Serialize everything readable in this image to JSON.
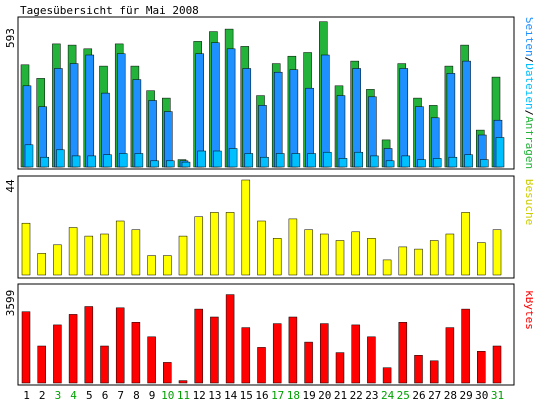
{
  "title": "Tagesübersicht für Mai 2008",
  "colors": {
    "background": "#ffffff",
    "panel_border": "#000000",
    "pages": "#1e90ff",
    "files": "#00bfff",
    "requests": "#23b33a",
    "visits": "#ffff00",
    "kbytes": "#ff0000",
    "weekend_label": "#00a000",
    "weekday_label": "#000000",
    "axis_legend_1_pages": "#1e90ff",
    "axis_legend_1_files": "#00bfff",
    "axis_legend_1_requests": "#23b33a",
    "axis_legend_2": "#cccc00",
    "axis_legend_3": "#ff0000"
  },
  "chart_data": [
    {
      "type": "bar",
      "panel": "top",
      "title": "Tagesübersicht für Mai 2008",
      "ymax_label": "593",
      "ylim": [
        0,
        593
      ],
      "legend_text": [
        "Seiten",
        "Dateien",
        "Anfragen"
      ],
      "categories": [
        "1",
        "2",
        "3",
        "4",
        "5",
        "6",
        "7",
        "8",
        "9",
        "10",
        "11",
        "12",
        "13",
        "14",
        "15",
        "16",
        "17",
        "18",
        "19",
        "20",
        "21",
        "22",
        "23",
        "24",
        "25",
        "26",
        "27",
        "28",
        "29",
        "30",
        "31"
      ],
      "weekend_days": [
        "3",
        "4",
        "10",
        "11",
        "17",
        "18",
        "24",
        "25",
        "31"
      ],
      "series": [
        {
          "name": "Anfragen",
          "values": [
            415,
            360,
            500,
            495,
            480,
            410,
            500,
            410,
            310,
            280,
            30,
            510,
            550,
            560,
            490,
            290,
            420,
            450,
            465,
            590,
            330,
            430,
            315,
            110,
            420,
            280,
            250,
            410,
            495,
            150,
            365
          ]
        },
        {
          "name": "Seiten",
          "values": [
            330,
            245,
            400,
            420,
            455,
            300,
            460,
            355,
            270,
            225,
            25,
            460,
            505,
            480,
            400,
            250,
            385,
            395,
            320,
            455,
            290,
            400,
            285,
            75,
            400,
            245,
            200,
            380,
            430,
            130,
            190
          ]
        },
        {
          "name": "Dateien",
          "values": [
            90,
            40,
            70,
            45,
            45,
            50,
            55,
            55,
            25,
            25,
            20,
            65,
            65,
            75,
            55,
            40,
            55,
            55,
            55,
            60,
            35,
            60,
            45,
            25,
            45,
            30,
            35,
            40,
            50,
            30,
            120
          ]
        }
      ]
    },
    {
      "type": "bar",
      "panel": "middle",
      "ymax_label": "44",
      "ylim": [
        0,
        44
      ],
      "legend_text": [
        "Besuche"
      ],
      "categories": [
        "1",
        "2",
        "3",
        "4",
        "5",
        "6",
        "7",
        "8",
        "9",
        "10",
        "11",
        "12",
        "13",
        "14",
        "15",
        "16",
        "17",
        "18",
        "19",
        "20",
        "21",
        "22",
        "23",
        "24",
        "25",
        "26",
        "27",
        "28",
        "29",
        "30",
        "31"
      ],
      "series": [
        {
          "name": "Besuche",
          "values": [
            24,
            10,
            14,
            22,
            18,
            19,
            25,
            21,
            9,
            9,
            18,
            27,
            29,
            29,
            44,
            25,
            17,
            26,
            21,
            19,
            16,
            20,
            17,
            7,
            13,
            12,
            16,
            19,
            29,
            15,
            21
          ]
        }
      ]
    },
    {
      "type": "bar",
      "panel": "bottom",
      "ymax_label": "3599",
      "ylim": [
        0,
        3599
      ],
      "legend_text": [
        "kBytes"
      ],
      "categories": [
        "1",
        "2",
        "3",
        "4",
        "5",
        "6",
        "7",
        "8",
        "9",
        "10",
        "11",
        "12",
        "13",
        "14",
        "15",
        "16",
        "17",
        "18",
        "19",
        "20",
        "21",
        "22",
        "23",
        "24",
        "25",
        "26",
        "27",
        "28",
        "29",
        "30",
        "31"
      ],
      "series": [
        {
          "name": "kBytes",
          "values": [
            2700,
            1400,
            2200,
            2600,
            2900,
            1400,
            2850,
            2300,
            1750,
            780,
            90,
            2800,
            2500,
            3350,
            2100,
            1350,
            2250,
            2500,
            1550,
            2250,
            1150,
            2200,
            1750,
            580,
            2300,
            1050,
            840,
            2100,
            2800,
            1200,
            1400
          ]
        }
      ]
    }
  ]
}
